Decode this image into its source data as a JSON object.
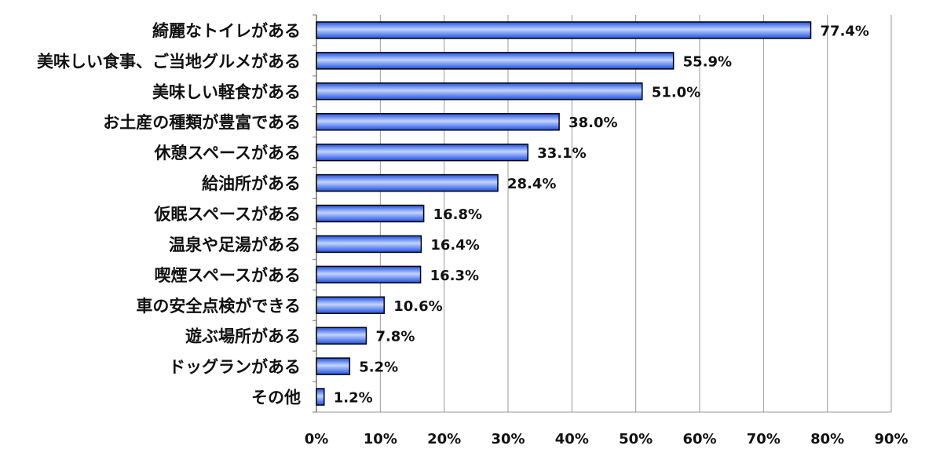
{
  "chart_data": {
    "type": "bar",
    "orientation": "horizontal",
    "title": "",
    "xlabel": "",
    "ylabel": "",
    "categories": [
      "綺麗なトイレがある",
      "美味しい食事、ご当地グルメがある",
      "美味しい軽食がある",
      "お土産の種類が豊富である",
      "休憩スペースがある",
      "給油所がある",
      "仮眠スペースがある",
      "温泉や足湯がある",
      "喫煙スペースがある",
      "車の安全点検ができる",
      "遊ぶ場所がある",
      "ドッグランがある",
      "その他"
    ],
    "values": [
      77.4,
      55.9,
      51.0,
      38.0,
      33.1,
      28.4,
      16.8,
      16.4,
      16.3,
      10.6,
      7.8,
      5.2,
      1.2
    ],
    "value_labels": [
      "77.4%",
      "55.9%",
      "51.0%",
      "38.0%",
      "33.1%",
      "28.4%",
      "16.8%",
      "16.4%",
      "16.3%",
      "10.6%",
      "7.8%",
      "5.2%",
      "1.2%"
    ],
    "xlim": [
      0,
      90
    ],
    "x_ticks": [
      0,
      10,
      20,
      30,
      40,
      50,
      60,
      70,
      80,
      90
    ],
    "x_tick_labels": [
      "0%",
      "10%",
      "20%",
      "30%",
      "40%",
      "50%",
      "60%",
      "70%",
      "80%",
      "90%"
    ],
    "grid": "vertical",
    "legend": "none",
    "colors": {
      "bar_light": "#c2d4ff",
      "bar_dark": "#1f4fe0",
      "bar_border": "#000000",
      "grid": "#9a9a9a"
    }
  }
}
